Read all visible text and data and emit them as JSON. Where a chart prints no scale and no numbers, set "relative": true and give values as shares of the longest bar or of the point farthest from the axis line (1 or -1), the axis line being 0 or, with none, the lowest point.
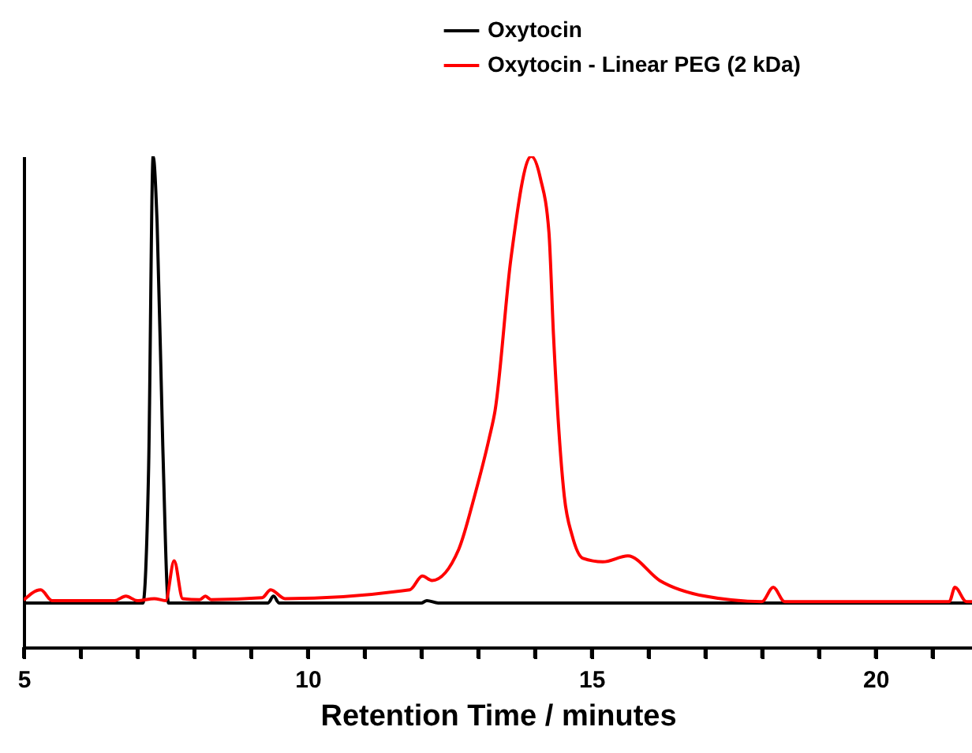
{
  "chart_data": {
    "type": "line",
    "xlabel": "Retention Time / minutes",
    "relative": true,
    "legend": "top right",
    "grid": false,
    "marker": "none",
    "line_style": "solid",
    "xlim": [
      5,
      21.7
    ],
    "xticks": [
      5,
      {
        "value": 6,
        "label": null
      },
      {
        "value": 7,
        "label": null
      },
      {
        "value": 8,
        "label": null
      },
      {
        "value": 9,
        "label": null
      },
      10,
      {
        "value": 11,
        "label": null
      },
      {
        "value": 12,
        "label": null
      },
      {
        "value": 13,
        "label": null
      },
      {
        "value": 14,
        "label": null
      },
      15,
      {
        "value": 16,
        "label": null
      },
      {
        "value": 17,
        "label": null
      },
      {
        "value": 18,
        "label": null
      },
      {
        "value": 19,
        "label": null
      },
      20,
      {
        "value": 21,
        "label": null
      }
    ],
    "series": [
      {
        "name": "Oxytocin",
        "color": "#000000",
        "x": [
          5,
          6.8,
          7.1,
          7.2,
          7.28,
          7.35,
          7.45,
          7.55,
          9.3,
          9.4,
          9.5,
          12,
          12.1,
          12.3,
          21.7
        ],
        "values": [
          0.09,
          0.09,
          0.09,
          0.363,
          1.0,
          0.864,
          0.409,
          0.09,
          0.09,
          0.104,
          0.09,
          0.09,
          0.095,
          0.09,
          0.09
        ]
      },
      {
        "name": "Oxytocin - Linear PEG (2 kDa)",
        "color": "#ff0000",
        "x": [
          5,
          5.3,
          5.5,
          6.6,
          6.8,
          7.0,
          7.3,
          7.5,
          7.65,
          7.8,
          8.1,
          8.2,
          8.3,
          9.2,
          9.35,
          9.6,
          11.8,
          12.02,
          12.19,
          12.66,
          12.94,
          13.2,
          13.3,
          13.58,
          13.94,
          14.1,
          14.25,
          14.33,
          14.52,
          14.66,
          14.85,
          15.2,
          15.64,
          16.2,
          17,
          18,
          18.2,
          18.4,
          21.3,
          21.4,
          21.6,
          21.7
        ],
        "values": [
          0.096,
          0.117,
          0.095,
          0.095,
          0.104,
          0.095,
          0.099,
          0.095,
          0.176,
          0.099,
          0.097,
          0.104,
          0.097,
          0.101,
          0.117,
          0.099,
          0.117,
          0.145,
          0.136,
          0.199,
          0.308,
          0.427,
          0.481,
          0.791,
          1.0,
          0.955,
          0.845,
          0.636,
          0.308,
          0.227,
          0.181,
          0.174,
          0.186,
          0.136,
          0.104,
          0.093,
          0.122,
          0.093,
          0.093,
          0.122,
          0.093,
          0.093
        ]
      }
    ]
  }
}
